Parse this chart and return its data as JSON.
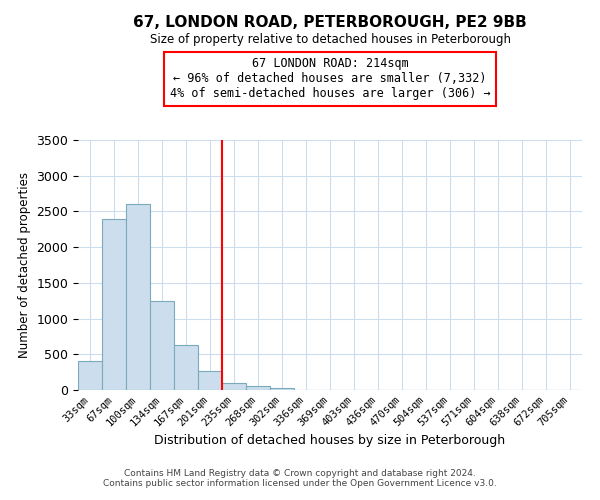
{
  "title": "67, LONDON ROAD, PETERBOROUGH, PE2 9BB",
  "subtitle": "Size of property relative to detached houses in Peterborough",
  "xlabel": "Distribution of detached houses by size in Peterborough",
  "ylabel": "Number of detached properties",
  "bar_labels": [
    "33sqm",
    "67sqm",
    "100sqm",
    "134sqm",
    "167sqm",
    "201sqm",
    "235sqm",
    "268sqm",
    "302sqm",
    "336sqm",
    "369sqm",
    "403sqm",
    "436sqm",
    "470sqm",
    "504sqm",
    "537sqm",
    "571sqm",
    "604sqm",
    "638sqm",
    "672sqm",
    "705sqm"
  ],
  "bar_values": [
    400,
    2400,
    2600,
    1250,
    630,
    270,
    100,
    50,
    30,
    0,
    0,
    0,
    0,
    0,
    0,
    0,
    0,
    0,
    0,
    0,
    0
  ],
  "bar_color": "#ccdded",
  "bar_edgecolor": "#7aaabb",
  "property_line_x": 5.5,
  "annotation_line1": "67 LONDON ROAD: 214sqm",
  "annotation_line2": "← 96% of detached houses are smaller (7,332)",
  "annotation_line3": "4% of semi-detached houses are larger (306) →",
  "vline_color": "red",
  "ylim": [
    0,
    3500
  ],
  "footnote1": "Contains HM Land Registry data © Crown copyright and database right 2024.",
  "footnote2": "Contains public sector information licensed under the Open Government Licence v3.0.",
  "background_color": "#ffffff",
  "grid_color": "#ccddee"
}
